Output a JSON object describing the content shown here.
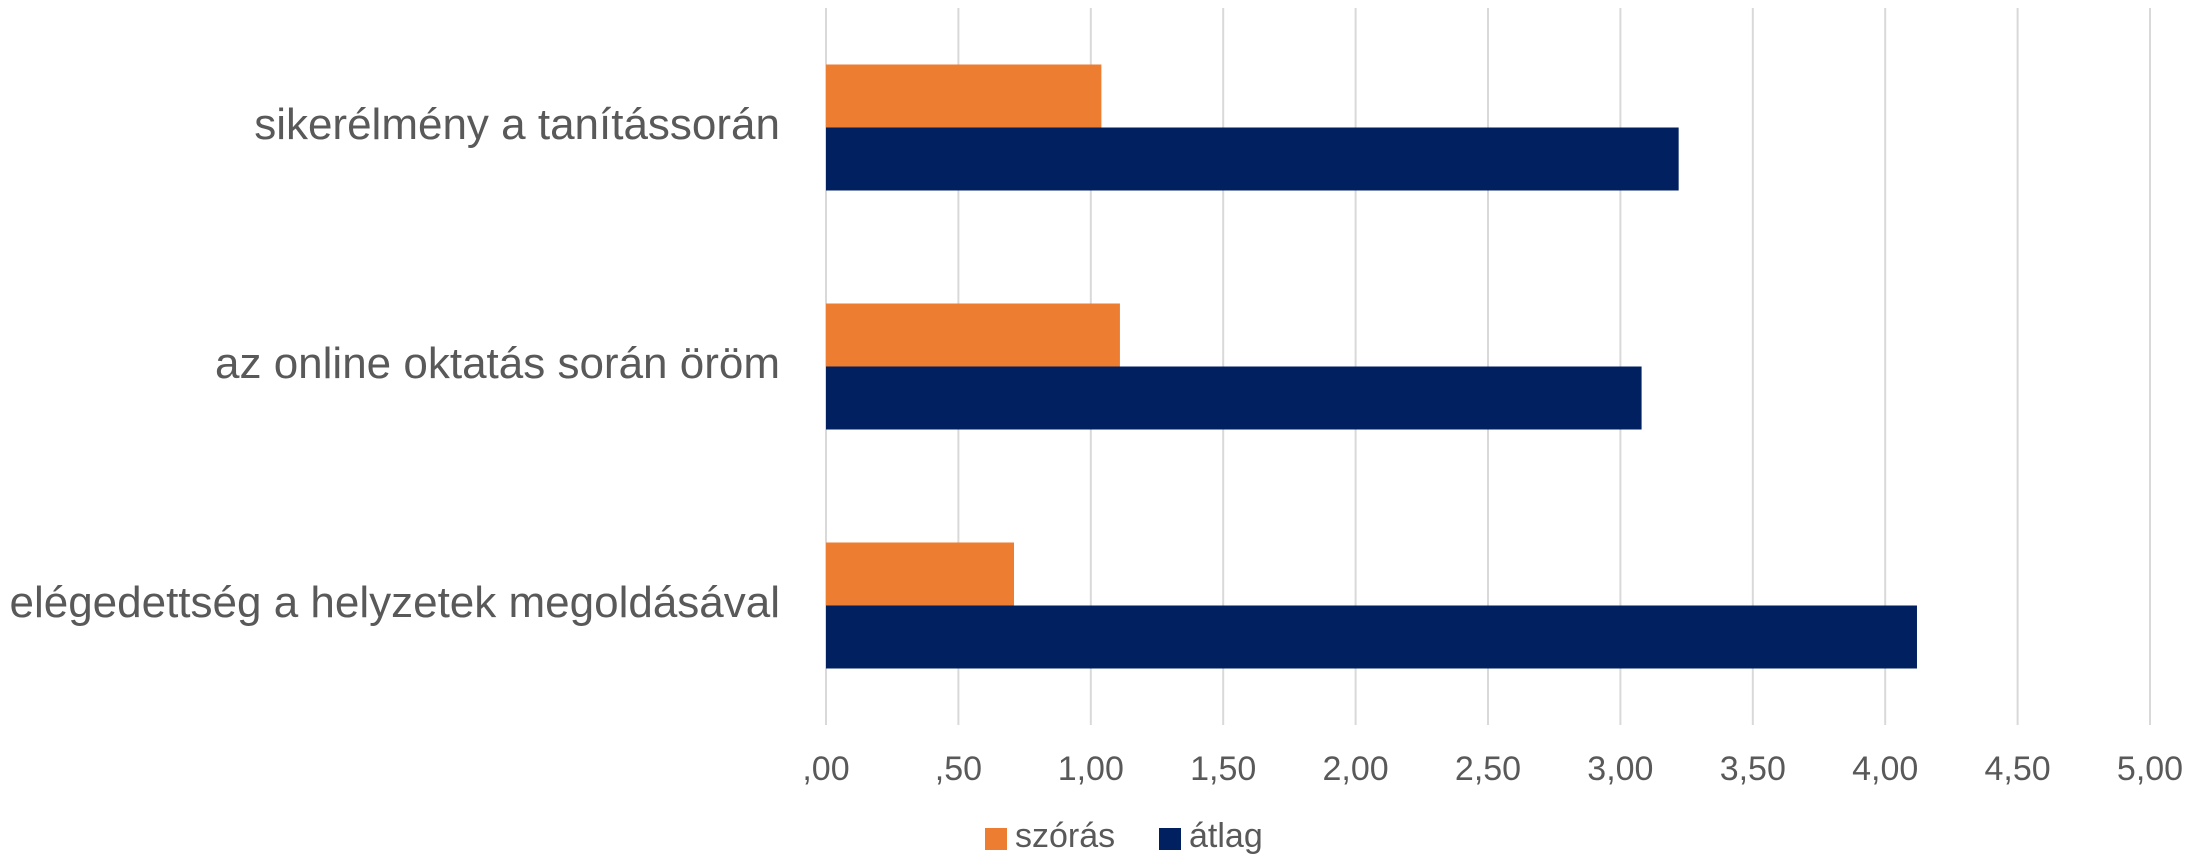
{
  "chart_data": {
    "type": "bar",
    "orientation": "horizontal",
    "categories": [
      "sikerélmény a tanítássorán",
      "az online oktatás során öröm",
      "elégedettség a helyzetek megoldásával"
    ],
    "series": [
      {
        "name": "szórás",
        "color": "#ED7D31",
        "values": [
          1.04,
          1.11,
          0.71
        ]
      },
      {
        "name": "átlag",
        "color": "#002060",
        "values": [
          3.22,
          3.08,
          4.12
        ]
      }
    ],
    "xlim": [
      0,
      5
    ],
    "xticks": [
      0,
      0.5,
      1,
      1.5,
      2,
      2.5,
      3,
      3.5,
      4,
      4.5,
      5
    ],
    "xtick_labels": [
      ",00",
      ",50",
      "1,00",
      "1,50",
      "2,00",
      "2,50",
      "3,00",
      "3,50",
      "4,00",
      "4,50",
      "5,00"
    ],
    "grid": "vertical",
    "legend_position": "bottom"
  }
}
